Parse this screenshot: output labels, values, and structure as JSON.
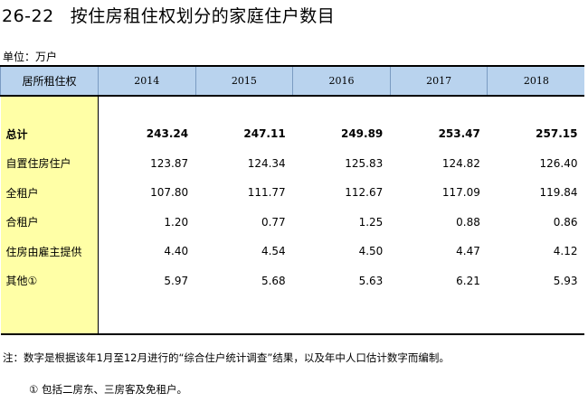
{
  "table_id": "26-22",
  "title": "按住房租住权划分的家庭住户数目",
  "unit": "单位：万户",
  "header": {
    "stub": "居所租住权",
    "years": [
      "2014",
      "2015",
      "2016",
      "2017",
      "2018"
    ]
  },
  "rows": [
    {
      "label": "总计",
      "values": [
        "243.24",
        "247.11",
        "249.89",
        "253.47",
        "257.15"
      ]
    },
    {
      "label": "自置住房住户",
      "values": [
        "123.87",
        "124.34",
        "125.83",
        "124.82",
        "126.40"
      ]
    },
    {
      "label": "全租户",
      "values": [
        "107.80",
        "111.77",
        "112.67",
        "117.09",
        "119.84"
      ]
    },
    {
      "label": "合租户",
      "values": [
        "1.20",
        "0.77",
        "1.25",
        "0.88",
        "0.86"
      ]
    },
    {
      "label": "住房由雇主提供",
      "values": [
        "4.40",
        "4.54",
        "4.50",
        "4.47",
        "4.12"
      ]
    },
    {
      "label": "其他①",
      "values": [
        "5.97",
        "5.68",
        "5.63",
        "6.21",
        "5.93"
      ]
    }
  ],
  "note": "注：数字是根据该年1月至12月进行的“综合住户统计调查”结果，以及年中人口估计数字而编制。",
  "footnote": "① 包括二房东、三房客及免租户。",
  "colors": {
    "header_bg": "#b9d3ee",
    "stub_bg": "#ffffa6"
  }
}
